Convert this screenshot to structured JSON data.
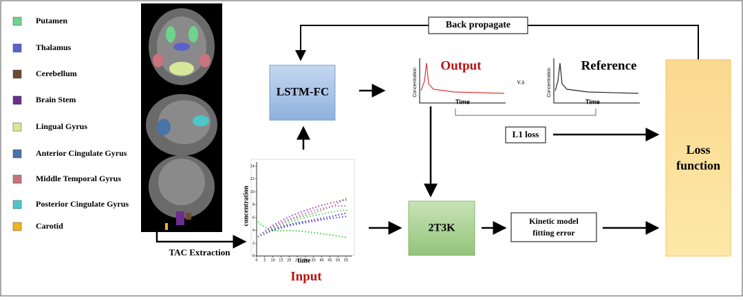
{
  "legend": [
    {
      "label": "Putamen",
      "color": "#6fd38d"
    },
    {
      "label": "Thalamus",
      "color": "#5b63c9"
    },
    {
      "label": "Cerebellum",
      "color": "#6b4a2e"
    },
    {
      "label": "Brain Stem",
      "color": "#6a2e8c"
    },
    {
      "label": "Lingual Gyrus",
      "color": "#d9e79a"
    },
    {
      "label": "Anterior Cingulate Gyrus",
      "color": "#4a73a8"
    },
    {
      "label": "Middle Temporal Gyrus",
      "color": "#c9737d"
    },
    {
      "label": "Posterior Cingulate Gyrus",
      "color": "#4cc7c9"
    },
    {
      "label": "Carotid",
      "color": "#f0b41c"
    }
  ],
  "nodes": {
    "back_propagate": "Back propagate",
    "lstm": "LSTM-FC",
    "output": "Output",
    "vs": "v.s",
    "reference": "Reference",
    "l1_loss": "L1 loss",
    "loss_function": [
      "Loss",
      "function"
    ],
    "model": "2T3K",
    "kinetic_error": [
      "Kinetic model",
      "fitting error"
    ],
    "tac_extraction": "TAC Extraction",
    "input": "Input"
  },
  "output_plot": {
    "x_label": "Time",
    "y_label": "Concentration"
  },
  "reference_plot": {
    "x_label": "Time",
    "y_label": "Concentration"
  },
  "input_plot": {
    "x_label": "time",
    "y_label": "concentration",
    "xticks": [
      0,
      5,
      10,
      15,
      20,
      25,
      30,
      35,
      40,
      45,
      50,
      55
    ],
    "yticks": [
      0,
      2,
      4,
      6,
      8,
      10,
      12,
      14
    ]
  }
}
